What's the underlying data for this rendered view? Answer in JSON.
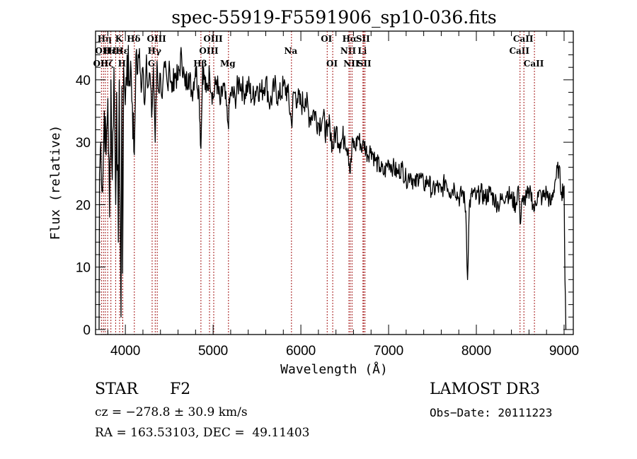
{
  "chart_data": {
    "type": "line",
    "title": "spec-55919-F5591906_sp10-036.fits",
    "xlabel": "Wavelength (Å)",
    "ylabel": "Flux (relative)",
    "xlim": [
      3660,
      9105
    ],
    "ylim": [
      -0.8,
      47.8
    ],
    "xticks": [
      4000,
      5000,
      6000,
      7000,
      8000,
      9000
    ],
    "xtick_labels": [
      "4000",
      "5000",
      "6000",
      "7000",
      "8000",
      "9000"
    ],
    "xminor_step": 200,
    "yticks": [
      0,
      10,
      20,
      30,
      40
    ],
    "ytick_labels": [
      "0",
      "10",
      "20",
      "30",
      "40"
    ],
    "yminor_step": 2,
    "grid": false,
    "line_color": "#000000",
    "marker_color": "#a31515",
    "series": [
      {
        "name": "flux",
        "anchors": [
          [
            3700,
            0
          ],
          [
            3705,
            25
          ],
          [
            3720,
            30
          ],
          [
            3740,
            22
          ],
          [
            3760,
            35
          ],
          [
            3780,
            28
          ],
          [
            3800,
            37
          ],
          [
            3820,
            18
          ],
          [
            3835,
            40
          ],
          [
            3850,
            24
          ],
          [
            3870,
            42
          ],
          [
            3890,
            20
          ],
          [
            3900,
            38
          ],
          [
            3920,
            14
          ],
          [
            3930,
            40
          ],
          [
            3950,
            2
          ],
          [
            3960,
            39
          ],
          [
            3968,
            9
          ],
          [
            3980,
            42
          ],
          [
            4000,
            36
          ],
          [
            4020,
            44
          ],
          [
            4040,
            39
          ],
          [
            4060,
            43
          ],
          [
            4080,
            36
          ],
          [
            4102,
            28
          ],
          [
            4120,
            44
          ],
          [
            4140,
            41
          ],
          [
            4160,
            45
          ],
          [
            4180,
            38
          ],
          [
            4200,
            42
          ],
          [
            4220,
            36
          ],
          [
            4240,
            44
          ],
          [
            4260,
            39
          ],
          [
            4280,
            41
          ],
          [
            4300,
            34
          ],
          [
            4320,
            42
          ],
          [
            4340,
            30
          ],
          [
            4360,
            43
          ],
          [
            4380,
            38
          ],
          [
            4400,
            41
          ],
          [
            4420,
            37
          ],
          [
            4450,
            42
          ],
          [
            4480,
            39
          ],
          [
            4500,
            43
          ],
          [
            4530,
            38
          ],
          [
            4560,
            41
          ],
          [
            4600,
            40
          ],
          [
            4640,
            44
          ],
          [
            4680,
            39
          ],
          [
            4720,
            41
          ],
          [
            4760,
            38
          ],
          [
            4800,
            42
          ],
          [
            4840,
            38
          ],
          [
            4861,
            29
          ],
          [
            4880,
            42
          ],
          [
            4920,
            38
          ],
          [
            4960,
            41
          ],
          [
            5000,
            37
          ],
          [
            5040,
            40
          ],
          [
            5080,
            36
          ],
          [
            5120,
            39
          ],
          [
            5170,
            33
          ],
          [
            5200,
            38
          ],
          [
            5250,
            37
          ],
          [
            5300,
            40
          ],
          [
            5350,
            38
          ],
          [
            5400,
            39
          ],
          [
            5450,
            37
          ],
          [
            5500,
            39
          ],
          [
            5550,
            38
          ],
          [
            5600,
            40
          ],
          [
            5650,
            36
          ],
          [
            5700,
            39
          ],
          [
            5750,
            37
          ],
          [
            5800,
            39
          ],
          [
            5850,
            38
          ],
          [
            5893,
            33
          ],
          [
            5920,
            38
          ],
          [
            5960,
            37
          ],
          [
            6000,
            36
          ],
          [
            6050,
            37
          ],
          [
            6100,
            34
          ],
          [
            6150,
            35
          ],
          [
            6200,
            33
          ],
          [
            6250,
            34
          ],
          [
            6300,
            31
          ],
          [
            6330,
            33
          ],
          [
            6363,
            29
          ],
          [
            6400,
            32
          ],
          [
            6450,
            30
          ],
          [
            6500,
            31
          ],
          [
            6540,
            29
          ],
          [
            6563,
            25
          ],
          [
            6590,
            30
          ],
          [
            6620,
            29
          ],
          [
            6650,
            31
          ],
          [
            6700,
            29
          ],
          [
            6717,
            30
          ],
          [
            6760,
            28
          ],
          [
            6800,
            29
          ],
          [
            6850,
            27
          ],
          [
            6900,
            26
          ],
          [
            6950,
            25
          ],
          [
            7000,
            27
          ],
          [
            7050,
            26
          ],
          [
            7100,
            25
          ],
          [
            7150,
            26
          ],
          [
            7200,
            24
          ],
          [
            7250,
            25
          ],
          [
            7300,
            23
          ],
          [
            7350,
            25
          ],
          [
            7400,
            23
          ],
          [
            7450,
            24
          ],
          [
            7500,
            22
          ],
          [
            7550,
            23
          ],
          [
            7600,
            22
          ],
          [
            7650,
            24
          ],
          [
            7700,
            22
          ],
          [
            7750,
            23
          ],
          [
            7800,
            21
          ],
          [
            7850,
            22
          ],
          [
            7880,
            19
          ],
          [
            7900,
            8
          ],
          [
            7920,
            20
          ],
          [
            7960,
            22
          ],
          [
            8000,
            21
          ],
          [
            8050,
            22
          ],
          [
            8100,
            21
          ],
          [
            8150,
            22
          ],
          [
            8200,
            21
          ],
          [
            8250,
            20
          ],
          [
            8300,
            21
          ],
          [
            8350,
            22
          ],
          [
            8400,
            21
          ],
          [
            8450,
            20
          ],
          [
            8480,
            23
          ],
          [
            8498,
            17
          ],
          [
            8520,
            21
          ],
          [
            8542,
            20
          ],
          [
            8570,
            22
          ],
          [
            8600,
            21
          ],
          [
            8620,
            22
          ],
          [
            8662,
            19
          ],
          [
            8700,
            22
          ],
          [
            8750,
            21
          ],
          [
            8800,
            22
          ],
          [
            8850,
            20
          ],
          [
            8900,
            24
          ],
          [
            8940,
            26
          ],
          [
            8970,
            22
          ],
          [
            9000,
            23
          ],
          [
            9010,
            8
          ],
          [
            9020,
            0
          ]
        ]
      }
    ],
    "line_markers": [
      {
        "wl": 3727,
        "label": "OII",
        "row": 2
      },
      {
        "wl": 3750,
        "label": "OII",
        "row": 1
      },
      {
        "wl": 3771,
        "label": "Hη",
        "row": 0
      },
      {
        "wl": 3798,
        "label": "Hζ",
        "row": 2
      },
      {
        "wl": 3835,
        "label": "Hε",
        "row": 1
      },
      {
        "wl": 3889,
        "label": "He",
        "row": 1
      },
      {
        "wl": 3934,
        "label": "K",
        "row": 0
      },
      {
        "wl": 3969,
        "label": "H",
        "row": 2
      },
      {
        "wl": 3970,
        "label": "Hε",
        "row": 1
      },
      {
        "wl": 4102,
        "label": "Hδ",
        "row": 0
      },
      {
        "wl": 4305,
        "label": "G",
        "row": 2
      },
      {
        "wl": 4340,
        "label": "Hγ",
        "row": 1
      },
      {
        "wl": 4363,
        "label": "OIII",
        "row": 0
      },
      {
        "wl": 4861,
        "label": "Hβ",
        "row": 2
      },
      {
        "wl": 4959,
        "label": "OIII",
        "row": 1
      },
      {
        "wl": 5007,
        "label": "OIII",
        "row": 0
      },
      {
        "wl": 5175,
        "label": "Mg",
        "row": 2
      },
      {
        "wl": 5893,
        "label": "Na",
        "row": 1
      },
      {
        "wl": 6300,
        "label": "OI",
        "row": 0
      },
      {
        "wl": 6363,
        "label": "OI",
        "row": 2
      },
      {
        "wl": 6548,
        "label": "NII",
        "row": 1
      },
      {
        "wl": 6563,
        "label": "Hα",
        "row": 0
      },
      {
        "wl": 6583,
        "label": "NII",
        "row": 2
      },
      {
        "wl": 6708,
        "label": "Li",
        "row": 1
      },
      {
        "wl": 6716,
        "label": "SII",
        "row": 0
      },
      {
        "wl": 6731,
        "label": "SII",
        "row": 2
      },
      {
        "wl": 8498,
        "label": "CaII",
        "row": 1
      },
      {
        "wl": 8542,
        "label": "CaII",
        "row": 0
      },
      {
        "wl": 8662,
        "label": "CaII",
        "row": 2
      }
    ]
  },
  "info": {
    "object_class": "STAR",
    "subclass": "F2",
    "redshift": "cz = −278.8 ± 30.9 km/s",
    "coords": "RA = 163.53103, DEC =  49.11403",
    "survey": "LAMOST DR3",
    "obs_date": "Obs−Date: 20111223"
  }
}
